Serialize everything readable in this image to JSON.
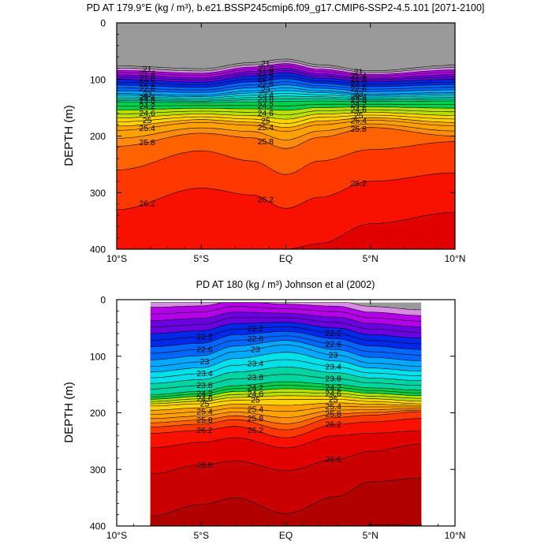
{
  "figure": {
    "top_title": "PD AT 179.9°E (kg / m³), b.e21.BSSP245cmip6.f09_g17.CMIP6-SSP2-4.5.101 [2071-2100]",
    "bottom_title": "PD AT 180 (kg / m³) Johnson et al (2002)"
  },
  "chart_data": [
    {
      "type": "heatmap",
      "subtype": "filled-contour",
      "title": "PD AT 179.9°E (kg / m³), b.e21.BSSP245cmip6.f09_g17.CMIP6-SSP2-4.5.101 [2071-2100]",
      "xlabel": "",
      "ylabel": "DEPTH (m)",
      "xlim": [
        -10,
        10
      ],
      "ylim": [
        400,
        0
      ],
      "y_reversed": true,
      "x_ticks": [
        -10,
        -5,
        0,
        5,
        10
      ],
      "x_tick_labels": [
        "10°S",
        "5°S",
        "EQ",
        "5°N",
        "10°N"
      ],
      "y_ticks": [
        0,
        100,
        200,
        300,
        400
      ],
      "y_tick_labels": [
        "0",
        "100",
        "200",
        "300",
        "400"
      ],
      "contour_interval": 0.2,
      "contour_range": [
        20.4,
        26.6
      ],
      "labeled_levels": [
        "21",
        "21.4",
        "21.8",
        "22.2",
        "22.6",
        "23",
        "23.4",
        "23.8",
        "24.2",
        "24.6",
        "25",
        "25.4",
        "25.8",
        "26.2"
      ],
      "isopycnal_depths": [
        {
          "level": 21.0,
          "x": [
            -10,
            -5,
            -2,
            0,
            2,
            5,
            10
          ],
          "depth": [
            80,
            85,
            74,
            68,
            78,
            88,
            79
          ]
        },
        {
          "level": 22.0,
          "x": [
            -10,
            -5,
            -2,
            0,
            2,
            5,
            10
          ],
          "depth": [
            100,
            105,
            94,
            88,
            98,
            104,
            100
          ]
        },
        {
          "level": 23.0,
          "x": [
            -10,
            -5,
            -2,
            0,
            2,
            5,
            10
          ],
          "depth": [
            125,
            128,
            120,
            115,
            120,
            126,
            123
          ]
        },
        {
          "level": 24.0,
          "x": [
            -10,
            -5,
            -2,
            0,
            2,
            5,
            10
          ],
          "depth": [
            140,
            141,
            140,
            139,
            138,
            139,
            138
          ]
        },
        {
          "level": 25.0,
          "x": [
            -10,
            -5,
            -2,
            0,
            2,
            5,
            10
          ],
          "depth": [
            175,
            166,
            170,
            178,
            167,
            163,
            170
          ]
        },
        {
          "level": 25.4,
          "x": [
            -10,
            -5,
            -2,
            0,
            2,
            5,
            10
          ],
          "depth": [
            190,
            176,
            181,
            192,
            180,
            172,
            182
          ]
        },
        {
          "level": 25.8,
          "x": [
            -10,
            -5,
            -2,
            0,
            2,
            5,
            10
          ],
          "depth": [
            218,
            195,
            203,
            222,
            202,
            185,
            200
          ]
        },
        {
          "level": 26.0,
          "x": [
            -10,
            -5,
            -2,
            0,
            2,
            5,
            10
          ],
          "depth": [
            260,
            226,
            244,
            268,
            244,
            224,
            210
          ]
        },
        {
          "level": 26.2,
          "x": [
            -10,
            -5,
            -2,
            0,
            2,
            5,
            10
          ],
          "depth": [
            330,
            292,
            304,
            328,
            308,
            280,
            265
          ]
        },
        {
          "level": 26.4,
          "x": [
            -10,
            -5,
            -2,
            0,
            2,
            5,
            10
          ],
          "depth": [
            400,
            400,
            400,
            400,
            390,
            355,
            335
          ]
        }
      ]
    },
    {
      "type": "heatmap",
      "subtype": "filled-contour",
      "title": "PD AT 180 (kg / m³) Johnson et al (2002)",
      "xlabel": "",
      "ylabel": "DEPTH (m)",
      "xlim": [
        -10,
        10
      ],
      "ylim": [
        400,
        0
      ],
      "y_reversed": true,
      "data_xrange": [
        -8,
        8
      ],
      "data_yrange": [
        5,
        400
      ],
      "x_ticks": [
        -10,
        -5,
        0,
        5,
        10
      ],
      "x_tick_labels": [
        "10°S",
        "5°S",
        "EQ",
        "5°N",
        "10°N"
      ],
      "y_ticks": [
        0,
        100,
        200,
        300,
        400
      ],
      "y_tick_labels": [
        "0",
        "100",
        "200",
        "300",
        "400"
      ],
      "contour_interval": 0.2,
      "labeled_levels": [
        "22.2",
        "22.6",
        "23",
        "23.4",
        "23.8",
        "24.2",
        "24.6",
        "25",
        "25.4",
        "25.8",
        "26.2",
        "26.6"
      ],
      "isopycnal_depths": [
        {
          "level": 22.0,
          "x": [
            -8,
            -5,
            -3,
            0,
            3,
            5,
            8
          ],
          "depth": [
            60,
            55,
            42,
            40,
            50,
            62,
            68
          ]
        },
        {
          "level": 23.0,
          "x": [
            -8,
            -5,
            -3,
            0,
            3,
            5,
            8
          ],
          "depth": [
            118,
            110,
            92,
            80,
            98,
            112,
            118
          ]
        },
        {
          "level": 24.0,
          "x": [
            -8,
            -5,
            -3,
            0,
            3,
            5,
            8
          ],
          "depth": [
            168,
            162,
            152,
            145,
            150,
            156,
            160
          ]
        },
        {
          "level": 25.0,
          "x": [
            -8,
            -5,
            -3,
            0,
            3,
            5,
            8
          ],
          "depth": [
            188,
            184,
            178,
            176,
            176,
            180,
            184
          ]
        },
        {
          "level": 26.0,
          "x": [
            -8,
            -5,
            -3,
            0,
            3,
            5,
            8
          ],
          "depth": [
            225,
            220,
            212,
            230,
            208,
            204,
            198
          ]
        },
        {
          "level": 26.2,
          "x": [
            -8,
            -5,
            -3,
            0,
            3,
            5,
            8
          ],
          "depth": [
            236,
            231,
            224,
            244,
            220,
            216,
            210
          ]
        },
        {
          "level": 26.4,
          "x": [
            -8,
            -5,
            -3,
            0,
            3,
            5,
            8
          ],
          "depth": [
            262,
            252,
            244,
            262,
            240,
            236,
            232
          ]
        },
        {
          "level": 26.6,
          "x": [
            -8,
            -5,
            -3,
            0,
            3,
            5,
            8
          ],
          "depth": [
            308,
            292,
            285,
            302,
            282,
            268,
            255
          ]
        },
        {
          "level": 26.8,
          "x": [
            -8,
            -5,
            -3,
            0,
            3,
            5,
            8
          ],
          "depth": [
            382,
            362,
            350,
            378,
            348,
            322,
            315
          ]
        }
      ]
    }
  ],
  "colors": {
    "21.0": "#9a9a9a",
    "21.2": "#d68de2",
    "21.4": "#b400e8",
    "21.8": "#6a00e0",
    "22.2": "#0028e8",
    "22.6": "#0066ff",
    "23.0": "#00a8ff",
    "23.4": "#00e0e8",
    "23.8": "#00d4a0",
    "24.2": "#00d04a",
    "24.6": "#b8e000",
    "25.0": "#ffd200",
    "25.4": "#ffa200",
    "25.8": "#ff8a10",
    "26.0": "#ff6200",
    "26.2": "#ff3800",
    "26.4": "#f81000",
    "26.6": "#e00000",
    "26.8": "#c80000",
    "27.0": "#b00000"
  }
}
